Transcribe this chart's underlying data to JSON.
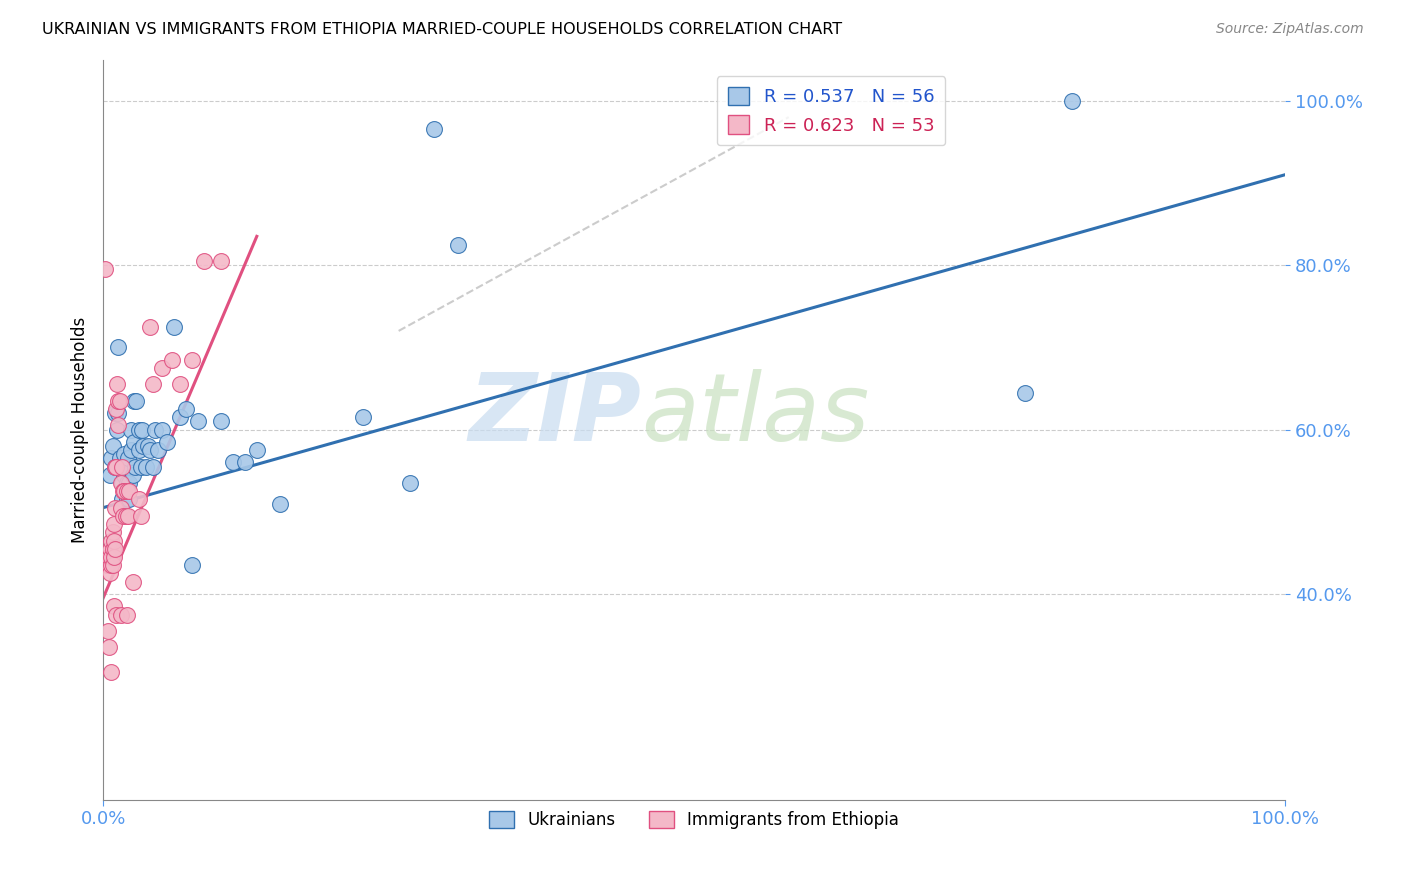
{
  "title": "UKRAINIAN VS IMMIGRANTS FROM ETHIOPIA MARRIED-COUPLE HOUSEHOLDS CORRELATION CHART",
  "source": "Source: ZipAtlas.com",
  "ylabel": "Married-couple Households",
  "xmin": 0.0,
  "xmax": 1.0,
  "ymin": 0.15,
  "ymax": 1.05,
  "ytick_values": [
    0.4,
    0.6,
    0.8,
    1.0
  ],
  "ytick_labels": [
    "40.0%",
    "60.0%",
    "80.0%",
    "100.0%"
  ],
  "watermark_zip": "ZIP",
  "watermark_atlas": "atlas",
  "legend_blue_r": "R = 0.537",
  "legend_blue_n": "N = 56",
  "legend_pink_r": "R = 0.623",
  "legend_pink_n": "N = 53",
  "blue_color": "#a8c8e8",
  "pink_color": "#f4b8c8",
  "blue_line_color": "#3070b0",
  "pink_line_color": "#e05080",
  "diagonal_color": "#cccccc",
  "blue_points": [
    [
      0.006,
      0.545
    ],
    [
      0.007,
      0.565
    ],
    [
      0.008,
      0.58
    ],
    [
      0.01,
      0.555
    ],
    [
      0.01,
      0.62
    ],
    [
      0.012,
      0.6
    ],
    [
      0.013,
      0.7
    ],
    [
      0.013,
      0.62
    ],
    [
      0.014,
      0.565
    ],
    [
      0.015,
      0.555
    ],
    [
      0.016,
      0.535
    ],
    [
      0.016,
      0.515
    ],
    [
      0.018,
      0.57
    ],
    [
      0.018,
      0.545
    ],
    [
      0.019,
      0.555
    ],
    [
      0.02,
      0.535
    ],
    [
      0.02,
      0.515
    ],
    [
      0.021,
      0.565
    ],
    [
      0.022,
      0.535
    ],
    [
      0.022,
      0.515
    ],
    [
      0.024,
      0.6
    ],
    [
      0.024,
      0.575
    ],
    [
      0.025,
      0.545
    ],
    [
      0.026,
      0.635
    ],
    [
      0.026,
      0.585
    ],
    [
      0.027,
      0.555
    ],
    [
      0.028,
      0.635
    ],
    [
      0.03,
      0.6
    ],
    [
      0.03,
      0.575
    ],
    [
      0.032,
      0.555
    ],
    [
      0.033,
      0.6
    ],
    [
      0.034,
      0.58
    ],
    [
      0.036,
      0.555
    ],
    [
      0.038,
      0.58
    ],
    [
      0.04,
      0.575
    ],
    [
      0.042,
      0.555
    ],
    [
      0.044,
      0.6
    ],
    [
      0.046,
      0.575
    ],
    [
      0.05,
      0.6
    ],
    [
      0.054,
      0.585
    ],
    [
      0.06,
      0.725
    ],
    [
      0.065,
      0.615
    ],
    [
      0.07,
      0.625
    ],
    [
      0.075,
      0.435
    ],
    [
      0.08,
      0.61
    ],
    [
      0.1,
      0.61
    ],
    [
      0.11,
      0.56
    ],
    [
      0.12,
      0.56
    ],
    [
      0.13,
      0.575
    ],
    [
      0.15,
      0.51
    ],
    [
      0.22,
      0.615
    ],
    [
      0.26,
      0.535
    ],
    [
      0.3,
      0.825
    ],
    [
      0.28,
      0.965
    ],
    [
      0.78,
      0.645
    ],
    [
      0.82,
      1.0
    ]
  ],
  "pink_points": [
    [
      0.003,
      0.435
    ],
    [
      0.004,
      0.445
    ],
    [
      0.005,
      0.435
    ],
    [
      0.005,
      0.445
    ],
    [
      0.006,
      0.425
    ],
    [
      0.006,
      0.455
    ],
    [
      0.007,
      0.435
    ],
    [
      0.007,
      0.465
    ],
    [
      0.007,
      0.445
    ],
    [
      0.008,
      0.435
    ],
    [
      0.008,
      0.475
    ],
    [
      0.008,
      0.455
    ],
    [
      0.009,
      0.485
    ],
    [
      0.009,
      0.465
    ],
    [
      0.009,
      0.445
    ],
    [
      0.01,
      0.555
    ],
    [
      0.01,
      0.505
    ],
    [
      0.01,
      0.455
    ],
    [
      0.011,
      0.625
    ],
    [
      0.011,
      0.555
    ],
    [
      0.012,
      0.655
    ],
    [
      0.013,
      0.635
    ],
    [
      0.013,
      0.605
    ],
    [
      0.014,
      0.635
    ],
    [
      0.015,
      0.535
    ],
    [
      0.015,
      0.505
    ],
    [
      0.016,
      0.555
    ],
    [
      0.017,
      0.525
    ],
    [
      0.017,
      0.495
    ],
    [
      0.018,
      0.525
    ],
    [
      0.019,
      0.495
    ],
    [
      0.02,
      0.525
    ],
    [
      0.021,
      0.495
    ],
    [
      0.022,
      0.525
    ],
    [
      0.03,
      0.515
    ],
    [
      0.032,
      0.495
    ],
    [
      0.04,
      0.725
    ],
    [
      0.042,
      0.655
    ],
    [
      0.05,
      0.675
    ],
    [
      0.058,
      0.685
    ],
    [
      0.065,
      0.655
    ],
    [
      0.075,
      0.685
    ],
    [
      0.085,
      0.805
    ],
    [
      0.1,
      0.805
    ],
    [
      0.002,
      0.795
    ],
    [
      0.004,
      0.355
    ],
    [
      0.005,
      0.335
    ],
    [
      0.007,
      0.305
    ],
    [
      0.009,
      0.385
    ],
    [
      0.011,
      0.375
    ],
    [
      0.015,
      0.375
    ],
    [
      0.02,
      0.375
    ],
    [
      0.025,
      0.415
    ]
  ],
  "blue_line_x": [
    0.0,
    1.0
  ],
  "blue_line_y": [
    0.505,
    0.91
  ],
  "pink_line_x": [
    0.0,
    0.13
  ],
  "pink_line_y": [
    0.395,
    0.835
  ],
  "diag_line_x": [
    0.25,
    0.58
  ],
  "diag_line_y": [
    0.72,
    0.98
  ]
}
